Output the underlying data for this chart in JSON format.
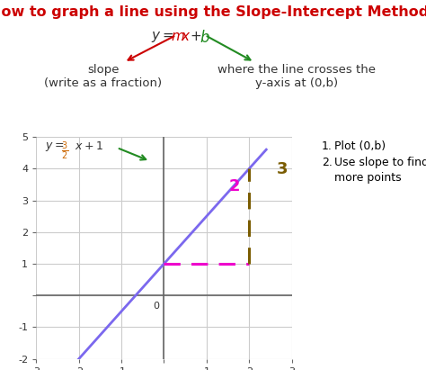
{
  "title": "How to graph a line using the Slope-Intercept Method?",
  "title_color": "#cc0000",
  "title_fontsize": 11.5,
  "bg_color": "#ffffff",
  "slope": 1.5,
  "intercept": 1,
  "x_range": [
    -3,
    3
  ],
  "y_range": [
    -2,
    5
  ],
  "line_color": "#7b68ee",
  "dashed_h_color": "#ee00cc",
  "dashed_v_color": "#7a5c00",
  "label_3_color": "#7a5c00",
  "label_2_color": "#ee00cc",
  "grid_color": "#cccccc",
  "slope_label": "slope\n(write as a fraction)",
  "yaxis_label": "where the line crosses the\ny-axis at (0,b)",
  "instr1": "Plot (0,b)",
  "instr2": "Use slope to find\nmore points"
}
